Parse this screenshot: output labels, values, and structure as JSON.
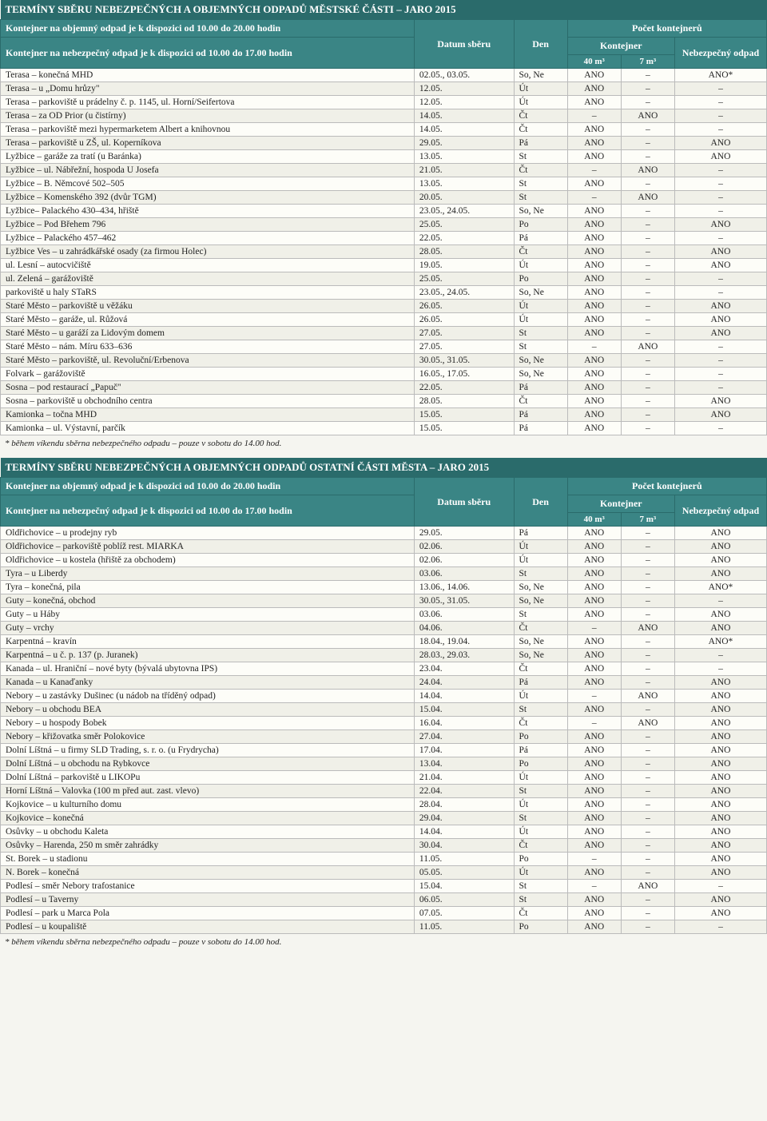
{
  "tables": [
    {
      "title": "TERMÍNY SBĚRU NEBEZPEČNÝCH A OBJEMNÝCH ODPADŮ MĚSTSKÉ ČÁSTI – JARO 2015",
      "info1": "Kontejner na objemný odpad je k dispozici od 10.00 do 20.00 hodin",
      "info2": "Kontejner na nebezpečný odpad je k dispozici od 10.00 do 17.00 hodin",
      "h_datum": "Datum sběru",
      "h_den": "Den",
      "h_pocet": "Počet kontejnerů",
      "h_kont": "Kontejner",
      "h_neb": "Nebezpečný odpad",
      "h_40": "40 m³",
      "h_7": "7 m³",
      "rows": [
        {
          "loc": "Terasa – konečná MHD",
          "date": "02.05., 03.05.",
          "day": "So, Ne",
          "k40": "ANO",
          "k7": "–",
          "neb": "ANO*"
        },
        {
          "loc": "Terasa – u „Domu hrůzy\"",
          "date": "12.05.",
          "day": "Út",
          "k40": "ANO",
          "k7": "–",
          "neb": "–"
        },
        {
          "loc": "Terasa – parkoviště u prádelny č. p. 1145, ul. Horní/Seifertova",
          "date": "12.05.",
          "day": "Út",
          "k40": "ANO",
          "k7": "–",
          "neb": "–"
        },
        {
          "loc": "Terasa – za OD Prior (u čistírny)",
          "date": "14.05.",
          "day": "Čt",
          "k40": "–",
          "k7": "ANO",
          "neb": "–"
        },
        {
          "loc": "Terasa – parkoviště mezi hypermarketem Albert a knihovnou",
          "date": "14.05.",
          "day": "Čt",
          "k40": "ANO",
          "k7": "–",
          "neb": "–"
        },
        {
          "loc": "Terasa – parkoviště u ZŠ, ul. Koperníkova",
          "date": "29.05.",
          "day": "Pá",
          "k40": "ANO",
          "k7": "–",
          "neb": "ANO"
        },
        {
          "loc": "Lyžbice – garáže za tratí (u Baránka)",
          "date": "13.05.",
          "day": "St",
          "k40": "ANO",
          "k7": "–",
          "neb": "ANO"
        },
        {
          "loc": "Lyžbice – ul. Nábřežní, hospoda U Josefa",
          "date": "21.05.",
          "day": "Čt",
          "k40": "–",
          "k7": "ANO",
          "neb": "–"
        },
        {
          "loc": "Lyžbice – B. Němcové 502–505",
          "date": "13.05.",
          "day": "St",
          "k40": "ANO",
          "k7": "–",
          "neb": "–"
        },
        {
          "loc": "Lyžbice – Komenského 392 (dvůr TGM)",
          "date": "20.05.",
          "day": "St",
          "k40": "–",
          "k7": "ANO",
          "neb": "–"
        },
        {
          "loc": "Lyžbice– Palackého 430–434, hřiště",
          "date": "23.05., 24.05.",
          "day": "So, Ne",
          "k40": "ANO",
          "k7": "–",
          "neb": "–"
        },
        {
          "loc": "Lyžbice – Pod Břehem 796",
          "date": "25.05.",
          "day": "Po",
          "k40": "ANO",
          "k7": "–",
          "neb": "ANO"
        },
        {
          "loc": "Lyžbice – Palackého 457–462",
          "date": "22.05.",
          "day": "Pá",
          "k40": "ANO",
          "k7": "–",
          "neb": "–"
        },
        {
          "loc": "Lyžbice Ves – u zahrádkářské osady (za firmou Holec)",
          "date": "28.05.",
          "day": "Čt",
          "k40": "ANO",
          "k7": "–",
          "neb": "ANO"
        },
        {
          "loc": "ul. Lesní – autocvičiště",
          "date": "19.05.",
          "day": "Út",
          "k40": "ANO",
          "k7": "–",
          "neb": "ANO"
        },
        {
          "loc": "ul. Zelená – garážoviště",
          "date": "25.05.",
          "day": "Po",
          "k40": "ANO",
          "k7": "–",
          "neb": "–"
        },
        {
          "loc": "parkoviště u haly STaRS",
          "date": "23.05., 24.05.",
          "day": "So, Ne",
          "k40": "ANO",
          "k7": "–",
          "neb": "–"
        },
        {
          "loc": "Staré Město – parkoviště u věžáku",
          "date": "26.05.",
          "day": "Út",
          "k40": "ANO",
          "k7": "–",
          "neb": "ANO"
        },
        {
          "loc": "Staré Město – garáže, ul. Růžová",
          "date": "26.05.",
          "day": "Út",
          "k40": "ANO",
          "k7": "–",
          "neb": "ANO"
        },
        {
          "loc": "Staré Město – u garáží za Lidovým domem",
          "date": "27.05.",
          "day": "St",
          "k40": "ANO",
          "k7": "–",
          "neb": "ANO"
        },
        {
          "loc": "Staré Město – nám. Míru 633–636",
          "date": "27.05.",
          "day": "St",
          "k40": "–",
          "k7": "ANO",
          "neb": "–"
        },
        {
          "loc": "Staré Město – parkoviště, ul. Revoluční/Erbenova",
          "date": "30.05., 31.05.",
          "day": "So, Ne",
          "k40": "ANO",
          "k7": "–",
          "neb": "–"
        },
        {
          "loc": "Folvark – garážoviště",
          "date": "16.05., 17.05.",
          "day": "So, Ne",
          "k40": "ANO",
          "k7": "–",
          "neb": "–"
        },
        {
          "loc": "Sosna – pod restaurací „Papuč\"",
          "date": "22.05.",
          "day": "Pá",
          "k40": "ANO",
          "k7": "–",
          "neb": "–"
        },
        {
          "loc": "Sosna – parkoviště u obchodního centra",
          "date": "28.05.",
          "day": "Čt",
          "k40": "ANO",
          "k7": "–",
          "neb": "ANO"
        },
        {
          "loc": "Kamionka – točna MHD",
          "date": "15.05.",
          "day": "Pá",
          "k40": "ANO",
          "k7": "–",
          "neb": "ANO"
        },
        {
          "loc": "Kamionka – ul. Výstavní, parčík",
          "date": "15.05.",
          "day": "Pá",
          "k40": "ANO",
          "k7": "–",
          "neb": "–"
        }
      ],
      "footnote": "* během víkendu sběrna nebezpečného odpadu – pouze v sobotu do 14.00 hod."
    },
    {
      "title": "TERMÍNY SBĚRU NEBEZPEČNÝCH A OBJEMNÝCH ODPADŮ OSTATNÍ ČÁSTI MĚSTA – JARO 2015",
      "info1": "Kontejner na objemný odpad je k dispozici od 10.00 do 20.00 hodin",
      "info2": "Kontejner na nebezpečný odpad je k dispozici od 10.00 do 17.00 hodin",
      "h_datum": "Datum sběru",
      "h_den": "Den",
      "h_pocet": "Počet kontejnerů",
      "h_kont": "Kontejner",
      "h_neb": "Nebezpečný odpad",
      "h_40": "40 m³",
      "h_7": "7 m³",
      "rows": [
        {
          "loc": "Oldřichovice – u prodejny ryb",
          "date": "29.05.",
          "day": "Pá",
          "k40": "ANO",
          "k7": "–",
          "neb": "ANO"
        },
        {
          "loc": "Oldřichovice – parkoviště poblíž rest. MIARKA",
          "date": "02.06.",
          "day": "Út",
          "k40": "ANO",
          "k7": "–",
          "neb": "ANO"
        },
        {
          "loc": "Oldřichovice – u kostela (hřiště za obchodem)",
          "date": "02.06.",
          "day": "Út",
          "k40": "ANO",
          "k7": "–",
          "neb": "ANO"
        },
        {
          "loc": "Tyra – u Liberdy",
          "date": "03.06.",
          "day": "St",
          "k40": "ANO",
          "k7": "–",
          "neb": "ANO"
        },
        {
          "loc": "Tyra – konečná, pila",
          "date": "13.06., 14.06.",
          "day": "So, Ne",
          "k40": "ANO",
          "k7": "–",
          "neb": "ANO*"
        },
        {
          "loc": "Guty – konečná, obchod",
          "date": "30.05., 31.05.",
          "day": "So, Ne",
          "k40": "ANO",
          "k7": "–",
          "neb": "–"
        },
        {
          "loc": "Guty – u Háby",
          "date": "03.06.",
          "day": "St",
          "k40": "ANO",
          "k7": "–",
          "neb": "ANO"
        },
        {
          "loc": "Guty – vrchy",
          "date": "04.06.",
          "day": "Čt",
          "k40": "–",
          "k7": "ANO",
          "neb": "ANO"
        },
        {
          "loc": "Karpentná – kravín",
          "date": "18.04., 19.04.",
          "day": "So, Ne",
          "k40": "ANO",
          "k7": "–",
          "neb": "ANO*"
        },
        {
          "loc": "Karpentná – u č. p. 137 (p. Juranek)",
          "date": "28.03., 29.03.",
          "day": "So, Ne",
          "k40": "ANO",
          "k7": "–",
          "neb": "–"
        },
        {
          "loc": "Kanada – ul. Hraniční – nové byty (bývalá ubytovna IPS)",
          "date": "23.04.",
          "day": "Čt",
          "k40": "ANO",
          "k7": "–",
          "neb": "–"
        },
        {
          "loc": "Kanada – u Kanaďanky",
          "date": "24.04.",
          "day": "Pá",
          "k40": "ANO",
          "k7": "–",
          "neb": "ANO"
        },
        {
          "loc": "Nebory – u zastávky Dušinec (u nádob na tříděný odpad)",
          "date": "14.04.",
          "day": "Út",
          "k40": "–",
          "k7": "ANO",
          "neb": "ANO"
        },
        {
          "loc": "Nebory – u obchodu BEA",
          "date": "15.04.",
          "day": "St",
          "k40": "ANO",
          "k7": "–",
          "neb": "ANO"
        },
        {
          "loc": "Nebory – u hospody Bobek",
          "date": "16.04.",
          "day": "Čt",
          "k40": "–",
          "k7": "ANO",
          "neb": "ANO"
        },
        {
          "loc": "Nebory – křižovatka směr Polokovice",
          "date": "27.04.",
          "day": "Po",
          "k40": "ANO",
          "k7": "–",
          "neb": "ANO"
        },
        {
          "loc": "Dolní Líštná – u firmy SLD Trading, s. r. o. (u Frydrycha)",
          "date": "17.04.",
          "day": "Pá",
          "k40": "ANO",
          "k7": "–",
          "neb": "ANO"
        },
        {
          "loc": "Dolní Líštná – u obchodu na Rybkovce",
          "date": "13.04.",
          "day": "Po",
          "k40": "ANO",
          "k7": "–",
          "neb": "ANO"
        },
        {
          "loc": "Dolní Líštná – parkoviště u LIKOPu",
          "date": "21.04.",
          "day": "Út",
          "k40": "ANO",
          "k7": "–",
          "neb": "ANO"
        },
        {
          "loc": "Horní Líštná – Valovka (100 m před aut. zast. vlevo)",
          "date": "22.04.",
          "day": "St",
          "k40": "ANO",
          "k7": "–",
          "neb": "ANO"
        },
        {
          "loc": "Kojkovice – u kulturního domu",
          "date": "28.04.",
          "day": "Út",
          "k40": "ANO",
          "k7": "–",
          "neb": "ANO"
        },
        {
          "loc": "Kojkovice – konečná",
          "date": "29.04.",
          "day": "St",
          "k40": "ANO",
          "k7": "–",
          "neb": "ANO"
        },
        {
          "loc": "Osůvky – u obchodu Kaleta",
          "date": "14.04.",
          "day": "Út",
          "k40": "ANO",
          "k7": "–",
          "neb": "ANO"
        },
        {
          "loc": "Osůvky – Harenda, 250 m směr zahrádky",
          "date": "30.04.",
          "day": "Čt",
          "k40": "ANO",
          "k7": "–",
          "neb": "ANO"
        },
        {
          "loc": "St. Borek – u stadionu",
          "date": "11.05.",
          "day": "Po",
          "k40": "–",
          "k7": "–",
          "neb": "ANO"
        },
        {
          "loc": "N. Borek – konečná",
          "date": "05.05.",
          "day": "Út",
          "k40": "ANO",
          "k7": "–",
          "neb": "ANO"
        },
        {
          "loc": "Podlesí – směr Nebory trafostanice",
          "date": "15.04.",
          "day": "St",
          "k40": "–",
          "k7": "ANO",
          "neb": "–"
        },
        {
          "loc": "Podlesí – u Taverny",
          "date": "06.05.",
          "day": "St",
          "k40": "ANO",
          "k7": "–",
          "neb": "ANO"
        },
        {
          "loc": "Podlesí – park u Marca Pola",
          "date": "07.05.",
          "day": "Čt",
          "k40": "ANO",
          "k7": "–",
          "neb": "ANO"
        },
        {
          "loc": "Podlesí – u koupaliště",
          "date": "11.05.",
          "day": "Po",
          "k40": "ANO",
          "k7": "–",
          "neb": "–"
        }
      ],
      "footnote": "* během víkendu sběrna nebezpečného odpadu – pouze v sobotu do 14.00 hod."
    }
  ]
}
